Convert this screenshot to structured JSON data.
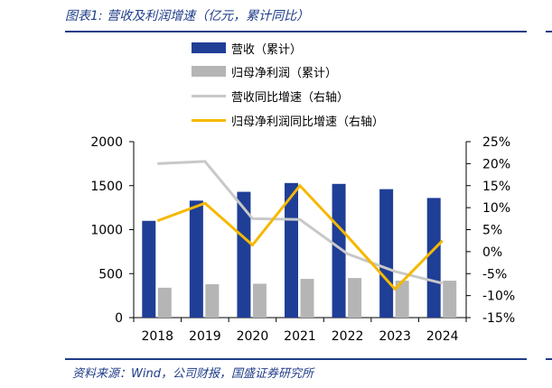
{
  "figure": {
    "title": "图表1: 营收及利润增速（亿元，累计同比）",
    "source": "资料来源：Wind，公司财报，国盛证券研究所"
  },
  "colors": {
    "revenue_bar": "#1f3e96",
    "profit_bar": "#b5b5b5",
    "revenue_growth_line": "#c8c8c8",
    "profit_growth_line": "#f5b800",
    "accent": "#1f3c88"
  },
  "chart_data": {
    "type": "bar",
    "categories": [
      "2018",
      "2019",
      "2020",
      "2021",
      "2022",
      "2023",
      "2024"
    ],
    "series": [
      {
        "name": "营收（累计）",
        "type": "bar",
        "axis": "left",
        "values": [
          1100,
          1330,
          1430,
          1530,
          1520,
          1460,
          1360
        ]
      },
      {
        "name": "归母净利润（累计）",
        "type": "bar",
        "axis": "left",
        "values": [
          340,
          380,
          385,
          440,
          450,
          420,
          420
        ]
      },
      {
        "name": "营收同比增速（右轴）",
        "type": "line",
        "axis": "right",
        "values": [
          20,
          20.5,
          7.5,
          7.3,
          -0.5,
          -4.5,
          -7.2
        ]
      },
      {
        "name": "归母净利润同比增速（右轴）",
        "type": "line",
        "axis": "right",
        "values": [
          7,
          11,
          1.5,
          15,
          3.5,
          -8.5,
          2.5
        ]
      }
    ],
    "y_left": {
      "min": 0,
      "max": 2000,
      "ticks": [
        "0",
        "500",
        "1000",
        "1500",
        "2000"
      ]
    },
    "y_right": {
      "min": -15,
      "max": 25,
      "ticks": [
        "-15%",
        "-10%",
        "-5%",
        "0%",
        "5%",
        "10%",
        "15%",
        "20%",
        "25%"
      ]
    },
    "legend_position": "top",
    "grid": false
  }
}
